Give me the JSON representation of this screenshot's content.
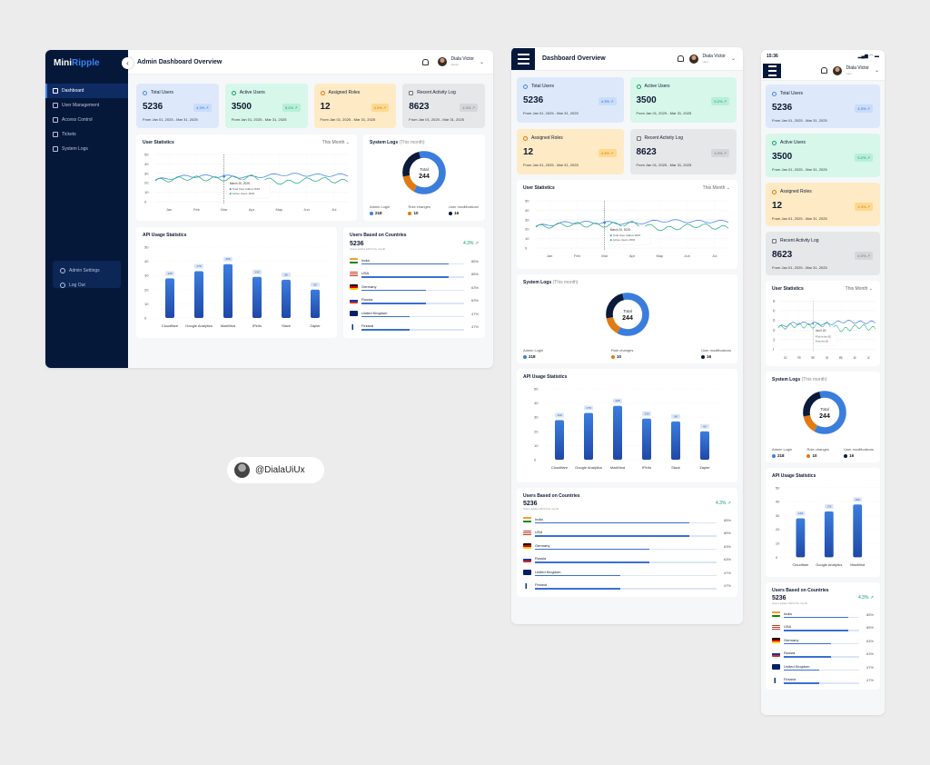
{
  "brand": {
    "name_a": "Mini",
    "name_b": "Ripple"
  },
  "sidebar": {
    "items": [
      {
        "label": "Dashboard",
        "icon": "grid-icon",
        "active": true
      },
      {
        "label": "User Management",
        "icon": "user-icon"
      },
      {
        "label": "Access Control",
        "icon": "lock-icon"
      },
      {
        "label": "Tickets",
        "icon": "ticket-icon"
      },
      {
        "label": "System Logs",
        "icon": "logs-icon"
      }
    ],
    "bottom": [
      {
        "label": "Admin Settings",
        "icon": "gear-icon"
      },
      {
        "label": "Log Out",
        "icon": "logout-icon"
      }
    ]
  },
  "header": {
    "title_desktop": "Admin Dashboard Overview",
    "title_tablet": "Dashboard Overview",
    "user_name": "Diala Victor",
    "user_role_desktop": "Admin",
    "user_role_mobile": "User",
    "mobile_time": "15:36"
  },
  "cards": [
    {
      "label": "Total Users",
      "value": "5236",
      "badge": "4.3% ↗",
      "range": "From Jan 01, 2025 - Mar 31, 2025",
      "theme": "blue"
    },
    {
      "label": "Active Users",
      "value": "3500",
      "badge": "5.2% ↗",
      "range": "From Jan 01, 2025 - Mar 31, 2025",
      "theme": "green"
    },
    {
      "label": "Assigned Roles",
      "value": "12",
      "badge": "4.3% ↗",
      "range": "From Jan 01, 2025 - Mar 31, 2025",
      "theme": "orange"
    },
    {
      "label": "Recent Activity Log",
      "value": "8623",
      "badge": "4.3% ↗",
      "range": "From Jan 01, 2025 - Mar 31, 2025",
      "theme": "gray"
    }
  ],
  "user_stats": {
    "title": "User Statistics",
    "filter": "This Month",
    "tooltip": {
      "date": "March 20, 2025",
      "total_label": "Total User Added",
      "total": "1823",
      "active_label": "Active Users",
      "active": "1803"
    }
  },
  "system_logs": {
    "title": "System Logs",
    "subtitle": "(This month)",
    "total_label": "Total",
    "total": "244",
    "items": [
      {
        "label": "Admin Login",
        "value": "218",
        "color": "#3b7ddd"
      },
      {
        "label": "Role changes",
        "value": "10",
        "color": "#e07b14"
      },
      {
        "label": "User modifications",
        "value": "16",
        "color": "#0b1a3a"
      }
    ]
  },
  "api": {
    "title": "API Usage Statistics"
  },
  "countries": {
    "title": "Users Based on Countries",
    "total": "5236",
    "change": "4.3% ↗",
    "sub": "Users added 1823 this month",
    "items": [
      {
        "name": "India",
        "pct": "85%",
        "v": 85
      },
      {
        "name": "USA",
        "pct": "85%",
        "v": 85
      },
      {
        "name": "Germany",
        "pct": "63%",
        "v": 63
      },
      {
        "name": "Russia",
        "pct": "63%",
        "v": 63
      },
      {
        "name": "United Kingdom",
        "pct": "47%",
        "v": 47
      },
      {
        "name": "Finland",
        "pct": "47%",
        "v": 47
      }
    ]
  },
  "watermark": "@DialaUiUx",
  "chart_data": [
    {
      "type": "line",
      "title": "User Statistics",
      "x": [
        "Jan",
        "Feb",
        "Mar",
        "Apr",
        "May",
        "Jun",
        "Jul"
      ],
      "ylim": [
        0,
        50
      ],
      "yticks": [
        0,
        10,
        20,
        30,
        40,
        50
      ],
      "series": [
        {
          "name": "Total User Added",
          "color": "#4a86e8",
          "values": [
            23,
            27,
            27,
            26,
            29,
            28,
            28
          ]
        },
        {
          "name": "Active Users",
          "color": "#2fb380",
          "values": [
            22,
            25,
            24,
            26,
            20,
            24,
            21
          ]
        }
      ]
    },
    {
      "type": "pie",
      "title": "System Logs (This month)",
      "categories": [
        "Admin Login",
        "Role changes",
        "User modifications"
      ],
      "values": [
        218,
        10,
        16
      ]
    },
    {
      "type": "bar",
      "title": "API Usage Statistics",
      "categories": [
        "Cloudflare",
        "Google Analytics",
        "MaxMind",
        "IPinfo",
        "Slack",
        "Zapier"
      ],
      "values": [
        28,
        33,
        38,
        29,
        27,
        20
      ],
      "labels": [
        "129",
        "178",
        "206",
        "130",
        "98",
        "60"
      ],
      "ylim": [
        0,
        50
      ],
      "yticks": [
        0,
        10,
        20,
        30,
        40,
        50
      ]
    }
  ]
}
